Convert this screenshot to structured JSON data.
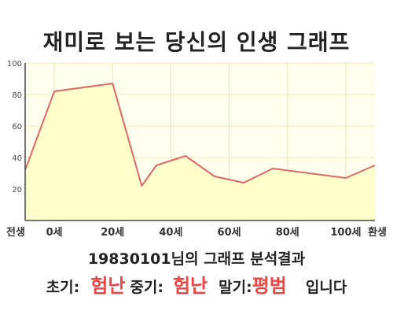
{
  "title": "재미로 보는 당신의 인생 그래프",
  "summary": {
    "birth_date": "19830101",
    "analysis_suffix": "님의 그래프 분석결과",
    "early_label": "초기:",
    "early_value": "험난",
    "middle_label": "중기:",
    "middle_value": "험난",
    "late_label": "말기:",
    "late_value": "평범",
    "ending": "입니다",
    "result_color": "#ee4444"
  },
  "chart_data": {
    "type": "area",
    "title": "",
    "xlabel": "",
    "ylabel": "",
    "xlim": [
      -10,
      110
    ],
    "ylim": [
      0,
      100
    ],
    "yticks": [
      20,
      40,
      60,
      80,
      100
    ],
    "xticks": [
      {
        "x": -10,
        "label": "전생"
      },
      {
        "x": 0,
        "label": "0세"
      },
      {
        "x": 20,
        "label": "20세"
      },
      {
        "x": 40,
        "label": "40세"
      },
      {
        "x": 60,
        "label": "60세"
      },
      {
        "x": 80,
        "label": "80세"
      },
      {
        "x": 100,
        "label": "100세"
      },
      {
        "x": 110,
        "label": "환생"
      }
    ],
    "grid": true,
    "series": [
      {
        "x": [
          -10,
          0,
          20,
          30,
          35,
          45,
          55,
          65,
          75,
          100,
          110
        ],
        "y": [
          32,
          82,
          87,
          22,
          35,
          41,
          28,
          24,
          33,
          27,
          35
        ],
        "line_color": "#e06666",
        "fill_color": "#ffffcc"
      }
    ],
    "plot_background": "#ffffee",
    "grid_color": "#f2e2b0"
  }
}
